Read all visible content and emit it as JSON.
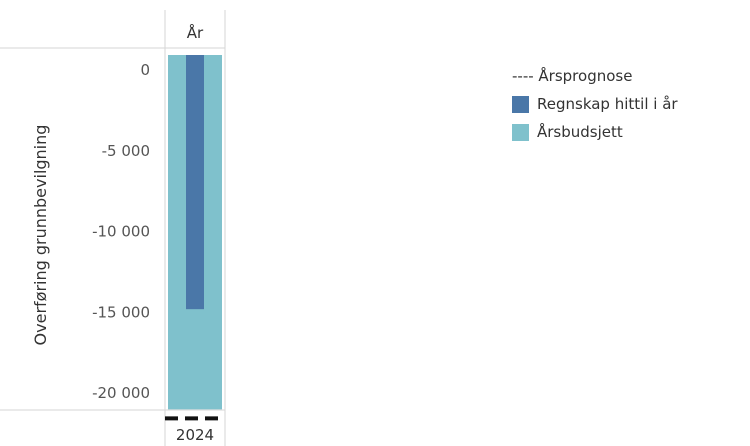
{
  "chart_data": {
    "type": "bar",
    "column_header": "År",
    "categories": [
      "2024"
    ],
    "ylabel": "Overføring grunnbevilgning",
    "ylim": [
      -21500,
      1000
    ],
    "yticks": [
      0,
      -5000,
      -10000,
      -15000,
      -20000
    ],
    "ytick_labels": [
      "0",
      "-5 000",
      "-10 000",
      "-15 000",
      "-20 000"
    ],
    "series": [
      {
        "name": "Årsbudsjett",
        "values": [
          -21000
        ],
        "color": "#7fc1cc"
      },
      {
        "name": "Regnskap hittil i år",
        "values": [
          -14800
        ],
        "color": "#4a77a8"
      },
      {
        "name": "Årsprognose",
        "values": [
          -21000
        ],
        "color": "#111111",
        "style": "dashed-line"
      }
    ],
    "legend": {
      "placement": "right",
      "items": [
        {
          "label": "---- Årsprognose",
          "marker": "dashed-line",
          "color": "#111111"
        },
        {
          "label": "Regnskap hittil i år",
          "marker": "square",
          "color": "#4a77a8"
        },
        {
          "label": "Årsbudsjett",
          "marker": "square",
          "color": "#7fc1cc"
        }
      ]
    }
  }
}
